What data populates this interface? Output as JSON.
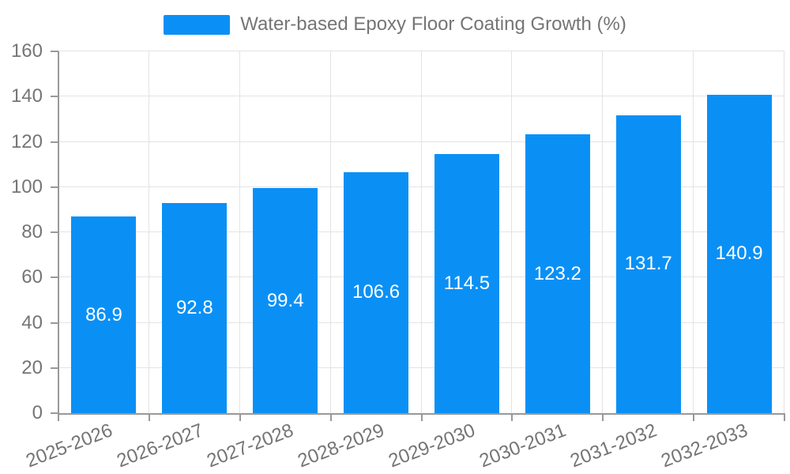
{
  "chart_data": {
    "type": "bar",
    "title": "Water-based Epoxy Floor Coating Growth (%)",
    "legend": {
      "label": "Water-based Epoxy Floor Coating Growth (%)",
      "position": "top"
    },
    "categories": [
      "2025-2026",
      "2026-2027",
      "2027-2028",
      "2028-2029",
      "2029-2030",
      "2030-2031",
      "2031-2032",
      "2032-2033"
    ],
    "series": [
      {
        "name": "Water-based Epoxy Floor Coating Growth (%)",
        "values": [
          86.9,
          92.8,
          99.4,
          106.6,
          114.5,
          123.2,
          131.7,
          140.9
        ]
      }
    ],
    "value_labels": [
      "86.9",
      "92.8",
      "99.4",
      "106.6",
      "114.5",
      "123.2",
      "131.7",
      "140.9"
    ],
    "xlabel": "",
    "ylabel": "",
    "ylim": [
      0,
      160
    ],
    "yticks": [
      0,
      20,
      40,
      60,
      80,
      100,
      120,
      140,
      160
    ],
    "grid": true,
    "x_label_rotation_deg": 21,
    "colors": {
      "bar": "#0A90F5",
      "axis_line": "#999999",
      "grid_line": "#E3E3E3",
      "tick_label": "#757575",
      "legend_text": "#757575",
      "value_label": "#FFFFFF",
      "background": "#FFFFFF"
    }
  }
}
